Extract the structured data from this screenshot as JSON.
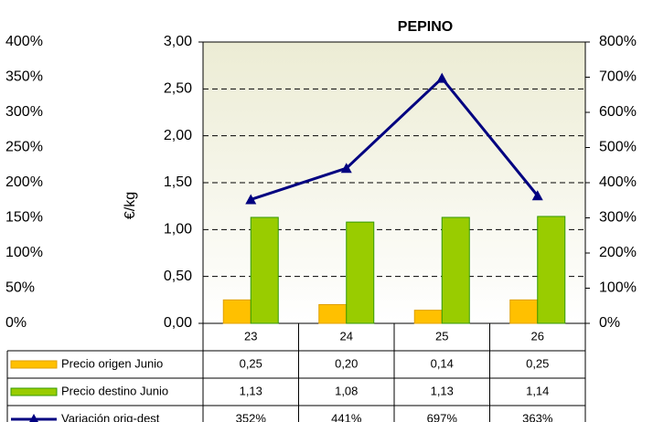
{
  "chart_data": {
    "type": "bar",
    "title": "PEPINO",
    "y_label": "€/kg",
    "categories": [
      "23",
      "24",
      "25",
      "26"
    ],
    "series": [
      {
        "name": "Precio origen Junio",
        "color": "#ffc000",
        "values": [
          0.25,
          0.2,
          0.14,
          0.25
        ],
        "value_labels": [
          "0,25",
          "0,20",
          "0,14",
          "0,25"
        ]
      },
      {
        "name": "Precio destino Junio",
        "color": "#99cc00",
        "values": [
          1.13,
          1.08,
          1.13,
          1.14
        ],
        "value_labels": [
          "1,13",
          "1,08",
          "1,13",
          "1,14"
        ]
      },
      {
        "name": "Variación orig-dest",
        "type": "line",
        "axis": "y2",
        "color": "#000080",
        "values": [
          352,
          441,
          697,
          363
        ],
        "value_labels": [
          "352%",
          "441%",
          "697%",
          "363%"
        ]
      }
    ],
    "ylim": [
      0,
      3
    ],
    "yticks": [
      {
        "value": 0,
        "label": "0,00"
      },
      {
        "value": 0.5,
        "label": "0,50"
      },
      {
        "value": 1,
        "label": "1,00"
      },
      {
        "value": 1.5,
        "label": "1,50"
      },
      {
        "value": 2,
        "label": "2,00"
      },
      {
        "value": 2.5,
        "label": "2,50"
      },
      {
        "value": 3,
        "label": "3,00"
      }
    ],
    "y2lim": [
      0,
      800
    ],
    "y2ticks": [
      {
        "value": 0,
        "label": "0%"
      },
      {
        "value": 100,
        "label": "100%"
      },
      {
        "value": 200,
        "label": "200%"
      },
      {
        "value": 300,
        "label": "300%"
      },
      {
        "value": 400,
        "label": "400%"
      },
      {
        "value": 500,
        "label": "500%"
      },
      {
        "value": 600,
        "label": "600%"
      },
      {
        "value": 700,
        "label": "700%"
      },
      {
        "value": 800,
        "label": "800%"
      }
    ],
    "y3lim": [
      0,
      400
    ],
    "y3ticks": [
      {
        "value": 0,
        "label": "0%"
      },
      {
        "value": 50,
        "label": "50%"
      },
      {
        "value": 100,
        "label": "100%"
      },
      {
        "value": 150,
        "label": "150%"
      },
      {
        "value": 200,
        "label": "200%"
      },
      {
        "value": 250,
        "label": "250%"
      },
      {
        "value": 300,
        "label": "300%"
      },
      {
        "value": 350,
        "label": "350%"
      },
      {
        "value": 400,
        "label": "400%"
      }
    ],
    "grid": true,
    "data_table": true
  }
}
